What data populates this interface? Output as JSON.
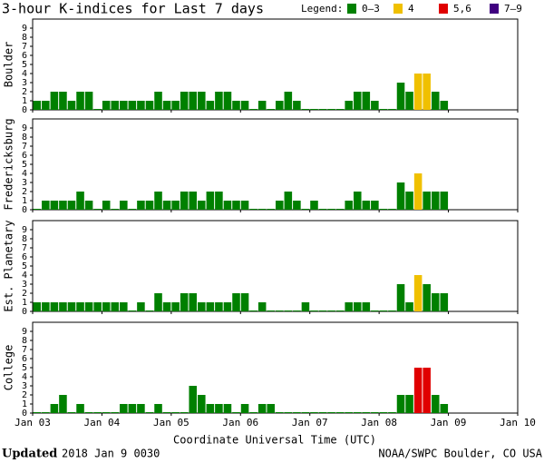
{
  "title": "3-hour K-indices for Last 7 days",
  "legend_title": "Legend:",
  "legend": [
    {
      "label": "0–3",
      "color": "#008000"
    },
    {
      "label": "4",
      "color": "#f0c000"
    },
    {
      "label": "5,6",
      "color": "#e00000"
    },
    {
      "label": "7–9",
      "color": "#400080"
    }
  ],
  "xlabel": "Coordinate Universal Time (UTC)",
  "xticks": [
    "Jan 03",
    "Jan 04",
    "Jan 05",
    "Jan 06",
    "Jan 07",
    "Jan 08",
    "Jan 09",
    "Jan 10"
  ],
  "footer": {
    "updated_label": "Updated",
    "updated": "2018 Jan  9 0030",
    "credit": "NOAA/SWPC Boulder, CO USA"
  },
  "chart_data": [
    {
      "type": "bar",
      "ylabel": "Boulder",
      "ylim": [
        0,
        10
      ],
      "yticks": [
        0,
        1,
        2,
        3,
        4,
        5,
        6,
        7,
        8,
        9
      ],
      "values": [
        1,
        1,
        2,
        2,
        1,
        2,
        2,
        0,
        1,
        1,
        1,
        1,
        1,
        1,
        2,
        1,
        1,
        2,
        2,
        2,
        1,
        2,
        2,
        1,
        1,
        0,
        1,
        0,
        1,
        2,
        1,
        0,
        0,
        0,
        0,
        0,
        1,
        2,
        2,
        1,
        0,
        0,
        3,
        2,
        4,
        4,
        2,
        1,
        null,
        null,
        null,
        null,
        null,
        null,
        null,
        null
      ]
    },
    {
      "type": "bar",
      "ylabel": "Fredericksburg",
      "ylim": [
        0,
        10
      ],
      "yticks": [
        0,
        1,
        2,
        3,
        4,
        5,
        6,
        7,
        8,
        9
      ],
      "values": [
        0,
        1,
        1,
        1,
        1,
        2,
        1,
        0,
        1,
        0,
        1,
        0,
        1,
        1,
        2,
        1,
        1,
        2,
        2,
        1,
        2,
        2,
        1,
        1,
        1,
        0,
        0,
        0,
        1,
        2,
        1,
        0,
        1,
        0,
        0,
        0,
        1,
        2,
        1,
        1,
        0,
        0,
        3,
        2,
        4,
        2,
        2,
        2,
        null,
        null,
        null,
        null,
        null,
        null,
        null,
        null
      ]
    },
    {
      "type": "bar",
      "ylabel": "Est. Planetary",
      "ylim": [
        0,
        10
      ],
      "yticks": [
        0,
        1,
        2,
        3,
        4,
        5,
        6,
        7,
        8,
        9
      ],
      "values": [
        1,
        1,
        1,
        1,
        1,
        1,
        1,
        1,
        1,
        1,
        1,
        0,
        1,
        0,
        2,
        1,
        1,
        2,
        2,
        1,
        1,
        1,
        1,
        2,
        2,
        0,
        1,
        0,
        0,
        0,
        0,
        1,
        0,
        0,
        0,
        0,
        1,
        1,
        1,
        0,
        0,
        0,
        3,
        1,
        4,
        3,
        2,
        2,
        null,
        null,
        null,
        null,
        null,
        null,
        null,
        null
      ]
    },
    {
      "type": "bar",
      "ylabel": "College",
      "ylim": [
        0,
        10
      ],
      "yticks": [
        0,
        1,
        2,
        3,
        4,
        5,
        6,
        7,
        8,
        9
      ],
      "values": [
        0,
        0,
        1,
        2,
        0,
        1,
        0,
        0,
        0,
        0,
        1,
        1,
        1,
        0,
        1,
        0,
        0,
        0,
        3,
        2,
        1,
        1,
        1,
        0,
        1,
        0,
        1,
        1,
        0,
        0,
        0,
        0,
        0,
        0,
        0,
        0,
        0,
        0,
        0,
        0,
        0,
        0,
        2,
        2,
        5,
        5,
        2,
        1,
        null,
        null,
        null,
        null,
        null,
        null,
        null,
        null
      ]
    }
  ]
}
